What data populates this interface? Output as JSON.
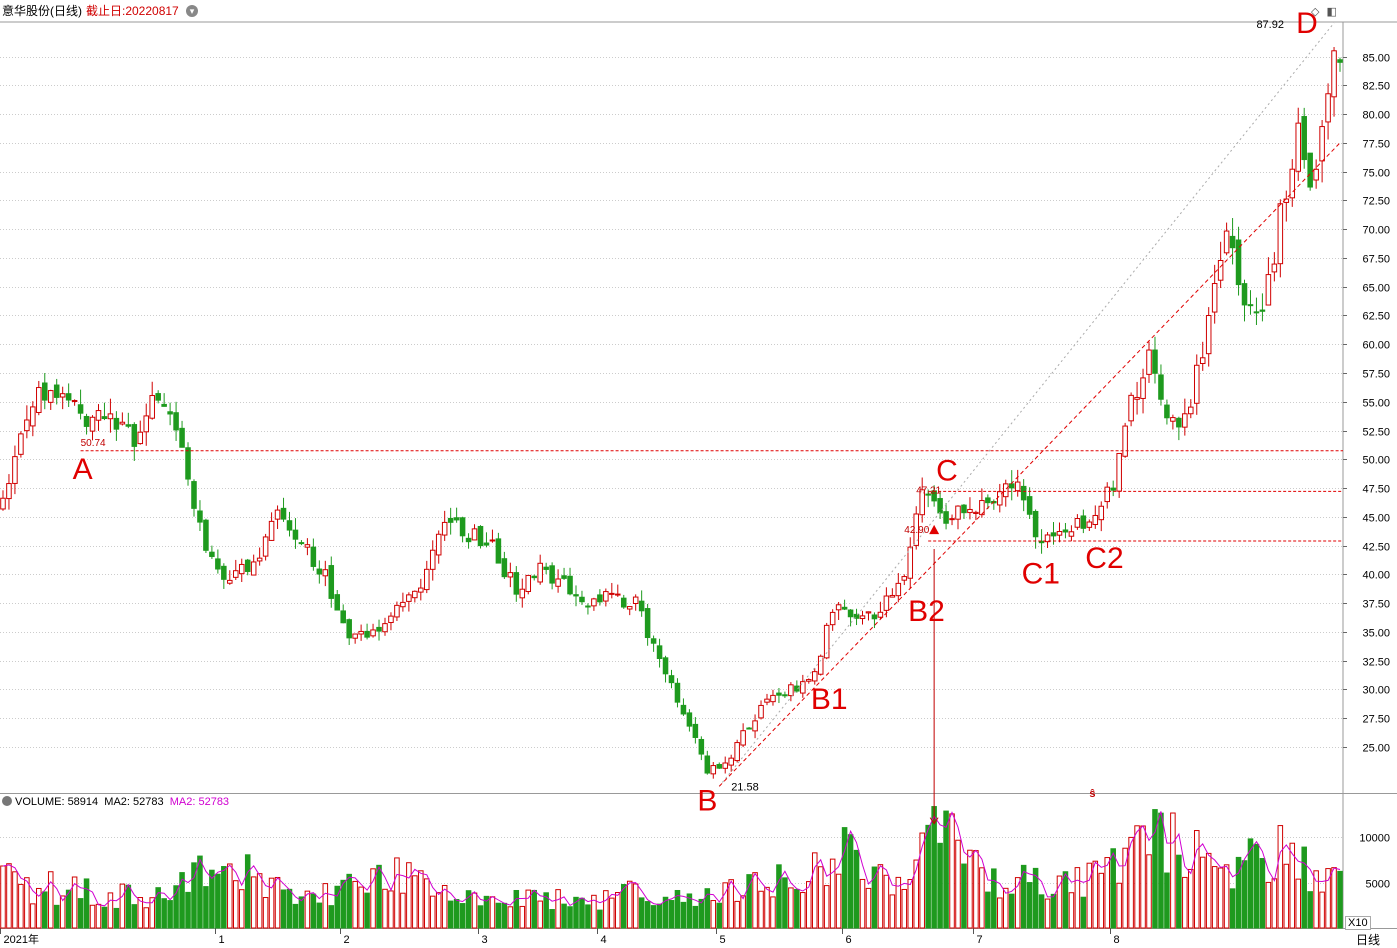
{
  "header": {
    "stock_name": "意华股份(日线)",
    "cutoff_label": "截止日:20220817"
  },
  "icons": {
    "menu": "chevron-down-icon",
    "tool_a": "diamond-icon",
    "tool_b": "panel-toggle-icon"
  },
  "colors": {
    "up": "#d00000",
    "down": "#1e9a1e",
    "ma": "#d000d0",
    "grid": "#cccccc",
    "annot": "#e00000"
  },
  "price_axis": {
    "ticks": [
      "25.00",
      "27.50",
      "30.00",
      "32.50",
      "35.00",
      "37.50",
      "40.00",
      "42.50",
      "45.00",
      "47.50",
      "50.00",
      "52.50",
      "55.00",
      "57.50",
      "60.00",
      "62.50",
      "65.00",
      "67.50",
      "70.00",
      "72.50",
      "75.00",
      "77.50",
      "80.00",
      "82.50",
      "85.00"
    ]
  },
  "volume_panel": {
    "header": {
      "volume": "VOLUME: 58914",
      "ma2": "MA2: 52783",
      "ma2_b": "MA2: 52783"
    },
    "ticks": [
      "5000",
      "10000"
    ],
    "scale_label": "X10"
  },
  "time_axis": {
    "labels": [
      "2021年",
      "1",
      "2",
      "3",
      "4",
      "5",
      "6",
      "7",
      "8"
    ],
    "period_label": "日线"
  },
  "annotations": {
    "letters": [
      "A",
      "B",
      "B1",
      "B2",
      "C",
      "C1",
      "C2",
      "D"
    ],
    "price_marks": [
      "50.74",
      "21.58",
      "47.21",
      "42.90",
      "87.92"
    ],
    "signal": "ŝ"
  },
  "chart_data": {
    "type": "candlestick",
    "series_name": "意华股份(日线)",
    "ylim": [
      21,
      88
    ],
    "volume_ylim": [
      0,
      13000
    ],
    "waypoints": [
      {
        "i": 0,
        "p": 46.5
      },
      {
        "i": 3,
        "p": 52
      },
      {
        "i": 6,
        "p": 55.5
      },
      {
        "i": 10,
        "p": 56.5
      },
      {
        "i": 14,
        "p": 53.5
      },
      {
        "i": 18,
        "p": 54
      },
      {
        "i": 22,
        "p": 52
      },
      {
        "i": 26,
        "p": 56
      },
      {
        "i": 30,
        "p": 51
      },
      {
        "i": 34,
        "p": 42
      },
      {
        "i": 38,
        "p": 39.5
      },
      {
        "i": 42,
        "p": 41
      },
      {
        "i": 46,
        "p": 45
      },
      {
        "i": 50,
        "p": 42.5
      },
      {
        "i": 54,
        "p": 40
      },
      {
        "i": 58,
        "p": 34
      },
      {
        "i": 62,
        "p": 35
      },
      {
        "i": 66,
        "p": 37.5
      },
      {
        "i": 70,
        "p": 39
      },
      {
        "i": 74,
        "p": 44.5
      },
      {
        "i": 78,
        "p": 43.5
      },
      {
        "i": 82,
        "p": 42.5
      },
      {
        "i": 86,
        "p": 38.5
      },
      {
        "i": 90,
        "p": 40.5
      },
      {
        "i": 94,
        "p": 39
      },
      {
        "i": 98,
        "p": 37.5
      },
      {
        "i": 102,
        "p": 38
      },
      {
        "i": 106,
        "p": 37.5
      },
      {
        "i": 110,
        "p": 32.5
      },
      {
        "i": 114,
        "p": 28
      },
      {
        "i": 118,
        "p": 23
      },
      {
        "i": 121,
        "p": 23.5
      },
      {
        "i": 124,
        "p": 26
      },
      {
        "i": 128,
        "p": 29.5
      },
      {
        "i": 132,
        "p": 30
      },
      {
        "i": 136,
        "p": 31.5
      },
      {
        "i": 139,
        "p": 37
      },
      {
        "i": 143,
        "p": 36
      },
      {
        "i": 147,
        "p": 37
      },
      {
        "i": 151,
        "p": 40.5
      },
      {
        "i": 154,
        "p": 48
      },
      {
        "i": 158,
        "p": 45
      },
      {
        "i": 162,
        "p": 45.5
      },
      {
        "i": 166,
        "p": 47
      },
      {
        "i": 170,
        "p": 47.5
      },
      {
        "i": 174,
        "p": 42.5
      },
      {
        "i": 178,
        "p": 43.5
      },
      {
        "i": 182,
        "p": 45
      },
      {
        "i": 186,
        "p": 47.5
      },
      {
        "i": 189,
        "p": 55
      },
      {
        "i": 192,
        "p": 59
      },
      {
        "i": 196,
        "p": 53
      },
      {
        "i": 199,
        "p": 55
      },
      {
        "i": 202,
        "p": 62
      },
      {
        "i": 205,
        "p": 69
      },
      {
        "i": 208,
        "p": 64
      },
      {
        "i": 211,
        "p": 62
      },
      {
        "i": 214,
        "p": 71
      },
      {
        "i": 217,
        "p": 79
      },
      {
        "i": 219,
        "p": 73
      },
      {
        "i": 221,
        "p": 80
      },
      {
        "i": 223,
        "p": 85
      }
    ],
    "volume_ma_points": [
      {
        "i": 0,
        "v": 5000
      },
      {
        "i": 20,
        "v": 3500
      },
      {
        "i": 28,
        "v": 4500
      },
      {
        "i": 38,
        "v": 6500
      },
      {
        "i": 55,
        "v": 3500
      },
      {
        "i": 70,
        "v": 6500
      },
      {
        "i": 80,
        "v": 4000
      },
      {
        "i": 95,
        "v": 3000
      },
      {
        "i": 110,
        "v": 4000
      },
      {
        "i": 120,
        "v": 3500
      },
      {
        "i": 130,
        "v": 5000
      },
      {
        "i": 140,
        "v": 9000
      },
      {
        "i": 150,
        "v": 5000
      },
      {
        "i": 156,
        "v": 11500
      },
      {
        "i": 165,
        "v": 5000
      },
      {
        "i": 180,
        "v": 5000
      },
      {
        "i": 195,
        "v": 10000
      },
      {
        "i": 205,
        "v": 5000
      },
      {
        "i": 210,
        "v": 9000
      },
      {
        "i": 223,
        "v": 5500
      }
    ],
    "hlines": [
      50.74,
      47.21,
      42.9
    ],
    "trendlines": [
      {
        "from": [
          120,
          21.58
        ],
        "to": [
          223,
          87.92
        ]
      },
      {
        "from": [
          120,
          21.58
        ],
        "to": [
          224,
          77.5
        ]
      }
    ],
    "labels_at": [
      {
        "label": "A",
        "i": 13,
        "p": 50.74
      },
      {
        "label": "B",
        "i": 118,
        "p": 21.58
      },
      {
        "label": "B1",
        "i": 134,
        "p": 29.5
      },
      {
        "label": "B2",
        "i": 155,
        "p": 39
      },
      {
        "label": "C",
        "i": 155,
        "p": 48
      },
      {
        "label": "C1",
        "i": 172,
        "p": 42
      },
      {
        "label": "C2",
        "i": 183,
        "p": 43
      },
      {
        "label": "D",
        "i": 220,
        "p": 87.92
      }
    ]
  }
}
